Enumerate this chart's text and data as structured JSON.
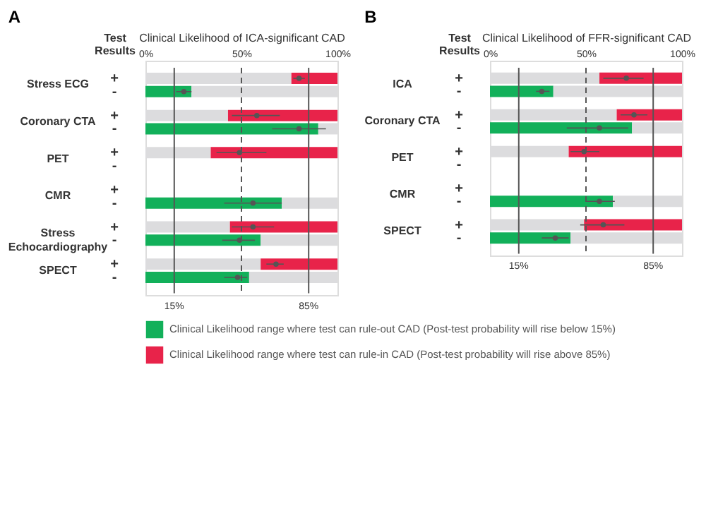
{
  "chart_data": [
    {
      "type": "bar",
      "orientation": "horizontal",
      "title": "A",
      "xlabel": "Clinical Likelihood of ICA-significant CAD",
      "ylabel": "Test Results",
      "categories": [
        "+",
        "-",
        "+",
        "-",
        "+",
        "-",
        "+",
        "-",
        "+",
        "-",
        "+",
        "-"
      ],
      "annotations": [
        "Stress ECG",
        "Coronary CTA",
        "PET",
        "CMR",
        "Stress\nEchocardiography",
        "SPECT"
      ],
      "xlim": [
        0,
        100
      ],
      "xticks": [
        {
          "value": 0,
          "label": "0%"
        },
        {
          "value": 50,
          "label": "50%"
        },
        {
          "value": 100,
          "label": "100%"
        }
      ],
      "ref_lines": [
        {
          "axis": "x",
          "value": 15,
          "label": "15%"
        },
        {
          "axis": "x",
          "value": 85,
          "label": "85%"
        },
        {
          "axis": "x",
          "value": 50,
          "label": null,
          "line_style": "dashed"
        }
      ],
      "legend": "bottom",
      "grid": false,
      "series": [
        {
          "name": "Clinical Likelihood range where test can rule-out CAD (Post-test probability will rise below 15%)",
          "color": "#12b05a",
          "values": [
            null,
            24,
            null,
            90,
            null,
            null,
            null,
            71,
            null,
            60,
            null,
            54
          ]
        },
        {
          "color": "#dcdcde",
          "values": [
            76,
            76,
            43,
            10,
            34,
            null,
            null,
            29,
            44,
            40,
            60,
            46
          ],
          "base": [
            0,
            24,
            0,
            90,
            0,
            null,
            null,
            71,
            0,
            60,
            0,
            54
          ]
        },
        {
          "name": "Clinical Likelihood range where test can rule-in CAD (Post-test probability will rise above 85%)",
          "color": "#e8234a",
          "values": [
            24,
            null,
            57,
            null,
            66,
            null,
            null,
            null,
            56,
            null,
            40,
            null
          ],
          "base": [
            76,
            null,
            43,
            null,
            34,
            null,
            null,
            null,
            44,
            null,
            60,
            null
          ]
        },
        {
          "type": "scatter",
          "marker": "circle",
          "color": "#555555",
          "values": [
            80,
            20,
            58,
            80,
            49,
            null,
            null,
            56,
            56,
            49,
            68,
            48
          ],
          "errors": [
            [
              77,
              83
            ],
            [
              16,
              24
            ],
            [
              45,
              70
            ],
            [
              66,
              94
            ],
            [
              37,
              63
            ],
            null,
            null,
            [
              41,
              71
            ],
            [
              45,
              67
            ],
            [
              40,
              57
            ],
            [
              63,
              72
            ],
            [
              41,
              53
            ]
          ]
        }
      ]
    },
    {
      "type": "bar",
      "orientation": "horizontal",
      "title": "B",
      "xlabel": "Clinical Likelihood of FFR-significant CAD",
      "ylabel": "Test Results",
      "categories": [
        "+",
        "-",
        "+",
        "-",
        "+",
        "-",
        "+",
        "-",
        "+",
        "-"
      ],
      "annotations": [
        "ICA",
        "Coronary CTA",
        "PET",
        "CMR",
        "SPECT"
      ],
      "xlim": [
        0,
        100
      ],
      "xticks": [
        {
          "value": 0,
          "label": "0%"
        },
        {
          "value": 50,
          "label": "50%"
        },
        {
          "value": 100,
          "label": "100%"
        }
      ],
      "ref_lines": [
        {
          "axis": "x",
          "value": 15,
          "label": "15%"
        },
        {
          "axis": "x",
          "value": 85,
          "label": "85%"
        },
        {
          "axis": "x",
          "value": 50,
          "label": null,
          "line_style": "dashed"
        }
      ],
      "legend": "bottom",
      "grid": false,
      "series": [
        {
          "name": "Clinical Likelihood range where test can rule-out CAD (Post-test probability will rise below 15%)",
          "color": "#12b05a",
          "values": [
            null,
            33,
            null,
            74,
            null,
            null,
            null,
            64,
            null,
            42
          ]
        },
        {
          "color": "#dcdcde",
          "values": [
            57,
            67,
            66,
            26,
            41,
            null,
            null,
            36,
            49,
            58
          ],
          "base": [
            0,
            33,
            0,
            74,
            0,
            null,
            null,
            64,
            0,
            42
          ]
        },
        {
          "name": "Clinical Likelihood range where test can rule-in CAD (Post-test probability will rise above 85%)",
          "color": "#e8234a",
          "values": [
            43,
            null,
            34,
            null,
            59,
            null,
            null,
            null,
            51,
            null
          ],
          "base": [
            57,
            null,
            66,
            null,
            41,
            null,
            null,
            null,
            49,
            null
          ]
        },
        {
          "type": "scatter",
          "marker": "circle",
          "color": "#555555",
          "values": [
            71,
            27,
            75,
            57,
            49,
            null,
            null,
            57,
            59,
            34
          ],
          "errors": [
            [
              59,
              80
            ],
            [
              24,
              31
            ],
            [
              68,
              82
            ],
            [
              40,
              72
            ],
            [
              42,
              57
            ],
            null,
            null,
            [
              50,
              65
            ],
            [
              47,
              70
            ],
            [
              27,
              41
            ]
          ]
        }
      ]
    }
  ]
}
